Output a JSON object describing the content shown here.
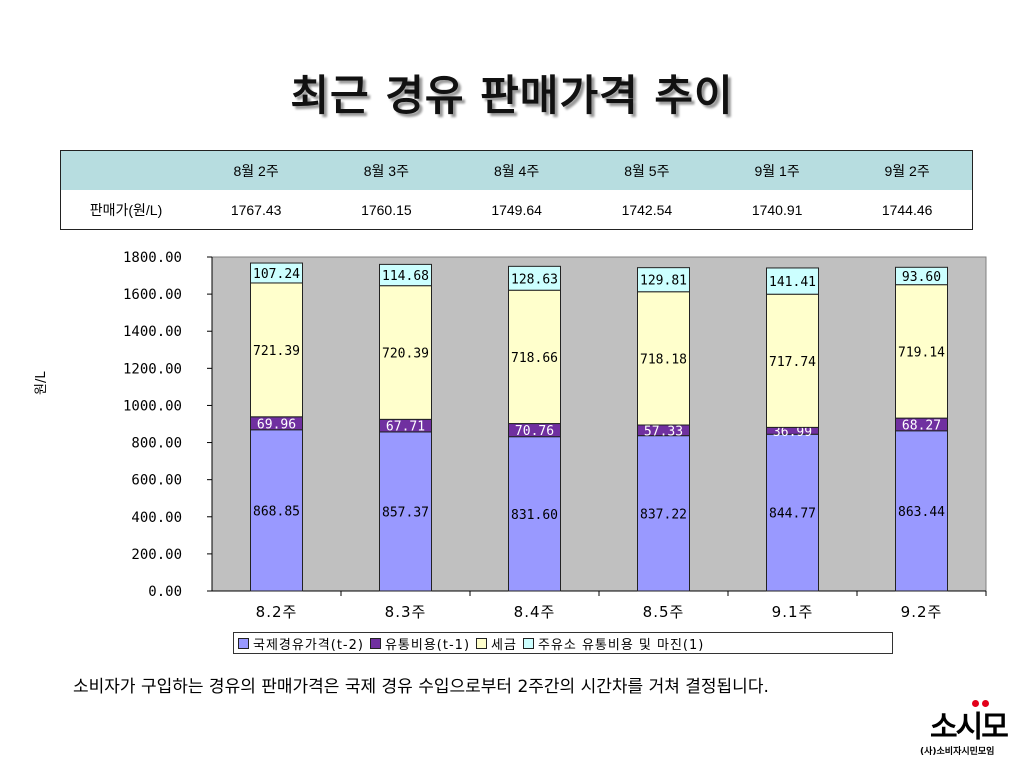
{
  "title": "최근 경유 판매가격 추이",
  "table": {
    "headers": [
      "",
      "8월 2주",
      "8월 3주",
      "8월 4주",
      "8월 5주",
      "9월 1주",
      "9월 2주"
    ],
    "row_label": "판매가(원/L)",
    "values": [
      "1767.43",
      "1760.15",
      "1749.64",
      "1742.54",
      "1740.91",
      "1744.46"
    ]
  },
  "chart_data": {
    "type": "bar",
    "stacked": true,
    "categories": [
      "8.2주",
      "8.3주",
      "8.4주",
      "8.5주",
      "9.1주",
      "9.2주"
    ],
    "ylabel": "원/L",
    "ylim": [
      0,
      1800
    ],
    "yticks": [
      "0.00",
      "200.00",
      "400.00",
      "600.00",
      "800.00",
      "1000.00",
      "1200.00",
      "1400.00",
      "1600.00",
      "1800.00"
    ],
    "series": [
      {
        "name": "국제경유가격(t-2)",
        "color": "#9999ff",
        "values": [
          868.85,
          857.37,
          831.6,
          837.22,
          844.77,
          863.44
        ],
        "labels": [
          "868.85",
          "857.37",
          "831.60",
          "837.22",
          "844.77",
          "863.44"
        ]
      },
      {
        "name": "유통비용(t-1)",
        "color": "#7030a0",
        "values": [
          69.96,
          67.71,
          70.76,
          57.33,
          36.99,
          68.27
        ],
        "labels": [
          "69.96",
          "67.71",
          "70.76",
          "57.33",
          "36.99",
          "68.27"
        ]
      },
      {
        "name": "세금",
        "color": "#ffffcc",
        "values": [
          721.39,
          720.39,
          718.66,
          718.18,
          717.74,
          719.14
        ],
        "labels": [
          "721.39",
          "720.39",
          "718.66",
          "718.18",
          "717.74",
          "719.14"
        ]
      },
      {
        "name": "주유소 유통비용 및 마진(1)",
        "color": "#ccffff",
        "values": [
          107.24,
          114.68,
          128.63,
          129.81,
          141.41,
          93.6
        ],
        "labels": [
          "107.24",
          "114.68",
          "128.63",
          "129.81",
          "141.41",
          "93.60"
        ]
      }
    ],
    "plot_background": "#c0c0c0",
    "grid": false,
    "legend_position": "bottom"
  },
  "caption": "소비자가 구입하는 경유의 판매가격은 국제 경유 수입으로부터 2주간의 시간차를 거쳐 결정됩니다.",
  "logo": {
    "main": "소시모",
    "sub": "(사)소비자시민모임"
  }
}
